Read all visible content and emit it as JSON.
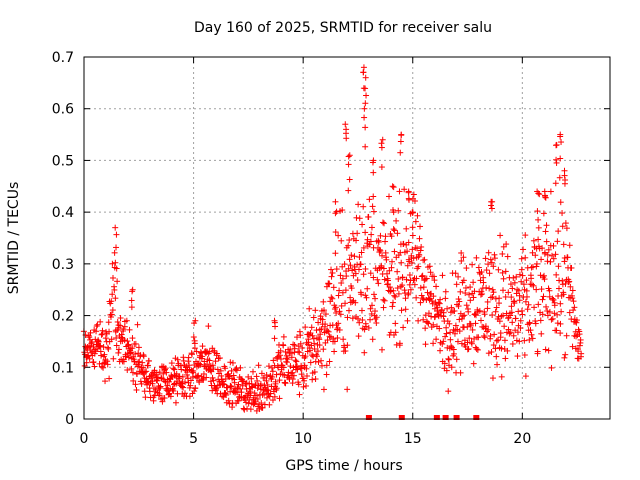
{
  "chart_data": {
    "type": "scatter",
    "title": "Day 160 of 2025, SRMTID for receiver salu",
    "xlabel": "GPS time / hours",
    "ylabel": "SRMTID / TECUs",
    "xlim": [
      0,
      24
    ],
    "ylim": [
      0,
      0.7
    ],
    "x_ticks": [
      0,
      5,
      10,
      15,
      20
    ],
    "x_tick_labels": [
      "0",
      "5",
      "10",
      "15",
      "20"
    ],
    "y_ticks": [
      0,
      0.1,
      0.2,
      0.3,
      0.4,
      0.5,
      0.6,
      0.7
    ],
    "y_tick_labels": [
      "0",
      "0.1",
      "0.2",
      "0.3",
      "0.4",
      "0.5",
      "0.6",
      "0.7"
    ],
    "grid": true,
    "marker": "+",
    "color": "#ff0000",
    "trend": {
      "hours": [
        0,
        0.5,
        1.0,
        1.4,
        1.8,
        2.3,
        3.0,
        4.0,
        5.0,
        5.5,
        6.5,
        7.5,
        8.3,
        9.0,
        10.0,
        11.0,
        12.0,
        12.8,
        13.5,
        14.0,
        14.5,
        15.0,
        15.5,
        16.0,
        16.5,
        17.0,
        18.0,
        19.0,
        20.0,
        20.5,
        21.0,
        21.6,
        22.0,
        22.5,
        22.7
      ],
      "srmtid_center": [
        0.12,
        0.14,
        0.13,
        0.21,
        0.15,
        0.12,
        0.07,
        0.07,
        0.09,
        0.11,
        0.07,
        0.05,
        0.06,
        0.1,
        0.11,
        0.18,
        0.26,
        0.3,
        0.28,
        0.27,
        0.29,
        0.31,
        0.26,
        0.21,
        0.17,
        0.2,
        0.23,
        0.22,
        0.2,
        0.24,
        0.27,
        0.28,
        0.26,
        0.16,
        0.14
      ],
      "srmtid_spread": [
        0.03,
        0.04,
        0.04,
        0.09,
        0.04,
        0.05,
        0.03,
        0.03,
        0.04,
        0.05,
        0.03,
        0.03,
        0.04,
        0.04,
        0.05,
        0.08,
        0.12,
        0.14,
        0.1,
        0.1,
        0.1,
        0.09,
        0.08,
        0.06,
        0.07,
        0.08,
        0.09,
        0.1,
        0.09,
        0.1,
        0.11,
        0.12,
        0.12,
        0.05,
        0.04
      ]
    },
    "peaks": [
      {
        "x": 1.45,
        "y": 0.37
      },
      {
        "x": 2.2,
        "y": 0.25
      },
      {
        "x": 5.05,
        "y": 0.19
      },
      {
        "x": 8.7,
        "y": 0.19
      },
      {
        "x": 11.5,
        "y": 0.42
      },
      {
        "x": 11.95,
        "y": 0.57
      },
      {
        "x": 12.1,
        "y": 0.51
      },
      {
        "x": 12.75,
        "y": 0.68
      },
      {
        "x": 12.85,
        "y": 0.66
      },
      {
        "x": 12.8,
        "y": 0.6
      },
      {
        "x": 13.2,
        "y": 0.5
      },
      {
        "x": 13.6,
        "y": 0.54
      },
      {
        "x": 14.1,
        "y": 0.45
      },
      {
        "x": 14.45,
        "y": 0.55
      },
      {
        "x": 14.8,
        "y": 0.44
      },
      {
        "x": 15.0,
        "y": 0.4
      },
      {
        "x": 18.6,
        "y": 0.42
      },
      {
        "x": 20.7,
        "y": 0.44
      },
      {
        "x": 21.05,
        "y": 0.44
      },
      {
        "x": 21.55,
        "y": 0.53
      },
      {
        "x": 21.75,
        "y": 0.55
      },
      {
        "x": 21.95,
        "y": 0.48
      }
    ],
    "gap_markers_hours": [
      13.0,
      14.5,
      16.1,
      16.5,
      17.0,
      17.9
    ]
  }
}
